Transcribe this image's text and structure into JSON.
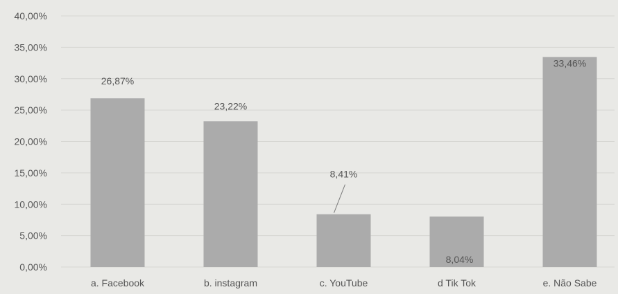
{
  "chart_data": {
    "type": "bar",
    "title": "",
    "xlabel": "",
    "ylabel": "",
    "categories": [
      "a. Facebook",
      "b. instagram",
      "c. YouTube",
      "d Tik Tok",
      "e. Não Sabe"
    ],
    "values": [
      26.87,
      23.22,
      8.41,
      8.04,
      33.46
    ],
    "data_labels": [
      "26,87%",
      "23,22%",
      "8,41%",
      "8,04%",
      "33,46%"
    ],
    "y_ticks": [
      "0,00%",
      "5,00%",
      "10,00%",
      "15,00%",
      "20,00%",
      "25,00%",
      "30,00%",
      "35,00%",
      "40,00%"
    ],
    "ylim": [
      0,
      40
    ],
    "grid": true,
    "legend": "none",
    "colors": {
      "bar": "#ababab",
      "grid": "#d6d6d2",
      "text": "#555555",
      "background": "#e9e9e6"
    }
  }
}
